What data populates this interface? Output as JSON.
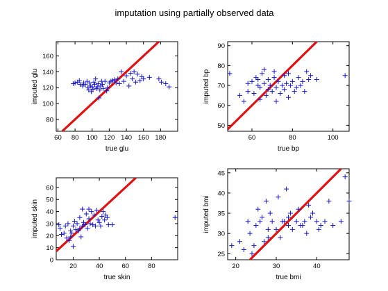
{
  "figure": {
    "title": "imputation using partially observed data"
  },
  "colors": {
    "points": "#1515cc",
    "line": "#e01010",
    "axes": "#000000",
    "background": "#ffffff"
  },
  "chart_data": [
    {
      "type": "scatter",
      "xlabel": "true glu",
      "ylabel": "imputed glu",
      "xlim": [
        58,
        200
      ],
      "ylim": [
        65,
        178
      ],
      "xticks": [
        60,
        80,
        100,
        120,
        140,
        160,
        180
      ],
      "yticks": [
        80,
        100,
        120,
        140,
        160
      ],
      "marker": "+",
      "reference_line": "y = x",
      "points": [
        [
          78,
          125
        ],
        [
          80,
          126
        ],
        [
          83,
          127
        ],
        [
          85,
          129
        ],
        [
          86,
          124
        ],
        [
          89,
          122
        ],
        [
          90,
          126
        ],
        [
          92,
          124
        ],
        [
          94,
          128
        ],
        [
          95,
          120
        ],
        [
          96,
          117
        ],
        [
          97,
          126
        ],
        [
          98,
          122
        ],
        [
          99,
          115
        ],
        [
          100,
          121
        ],
        [
          101,
          118
        ],
        [
          102,
          127
        ],
        [
          103,
          124
        ],
        [
          104,
          131
        ],
        [
          105,
          119
        ],
        [
          106,
          121
        ],
        [
          107,
          125
        ],
        [
          108,
          107
        ],
        [
          109,
          117
        ],
        [
          110,
          122
        ],
        [
          111,
          128
        ],
        [
          112,
          124
        ],
        [
          113,
          119
        ],
        [
          115,
          128
        ],
        [
          117,
          116
        ],
        [
          118,
          120
        ],
        [
          120,
          126
        ],
        [
          122,
          128
        ],
        [
          124,
          129
        ],
        [
          126,
          130
        ],
        [
          128,
          126
        ],
        [
          130,
          131
        ],
        [
          132,
          125
        ],
        [
          134,
          140
        ],
        [
          137,
          128
        ],
        [
          140,
          135
        ],
        [
          143,
          122
        ],
        [
          145,
          138
        ],
        [
          147,
          131
        ],
        [
          149,
          140
        ],
        [
          151,
          127
        ],
        [
          153,
          137
        ],
        [
          156,
          129
        ],
        [
          158,
          134
        ],
        [
          160,
          131
        ],
        [
          167,
          133
        ],
        [
          178,
          131
        ],
        [
          181,
          127
        ],
        [
          186,
          125
        ],
        [
          190,
          121
        ]
      ]
    },
    {
      "type": "scatter",
      "xlabel": "true bp",
      "ylabel": "imputed bp",
      "xlim": [
        48,
        108
      ],
      "ylim": [
        47,
        92
      ],
      "xticks": [
        60,
        80,
        100
      ],
      "yticks": [
        50,
        60,
        70,
        80,
        90
      ],
      "marker": "+",
      "reference_line": "y = x",
      "points": [
        [
          49,
          76
        ],
        [
          54,
          65
        ],
        [
          56,
          62
        ],
        [
          58,
          67
        ],
        [
          60,
          72
        ],
        [
          61,
          66
        ],
        [
          62,
          74
        ],
        [
          63,
          70
        ],
        [
          64,
          63
        ],
        [
          64,
          69
        ],
        [
          65,
          76
        ],
        [
          66,
          71
        ],
        [
          67,
          65
        ],
        [
          68,
          73
        ],
        [
          68,
          68
        ],
        [
          69,
          70
        ],
        [
          70,
          67
        ],
        [
          71,
          74
        ],
        [
          72,
          69
        ],
        [
          72,
          62
        ],
        [
          73,
          72
        ],
        [
          74,
          66
        ],
        [
          75,
          70
        ],
        [
          76,
          75
        ],
        [
          76,
          68
        ],
        [
          77,
          71
        ],
        [
          78,
          76
        ],
        [
          78,
          64
        ],
        [
          79,
          70
        ],
        [
          80,
          72
        ],
        [
          81,
          67
        ],
        [
          82,
          69
        ],
        [
          83,
          74
        ],
        [
          84,
          70
        ],
        [
          85,
          72
        ],
        [
          86,
          67
        ],
        [
          87,
          77
        ],
        [
          88,
          73
        ],
        [
          89,
          75
        ],
        [
          92,
          73
        ],
        [
          106,
          75
        ],
        [
          66,
          78
        ],
        [
          71,
          77
        ],
        [
          58,
          71
        ],
        [
          63,
          73
        ]
      ]
    },
    {
      "type": "scatter",
      "xlabel": "true skin",
      "ylabel": "imputed skin",
      "xlim": [
        7,
        100
      ],
      "ylim": [
        0,
        68
      ],
      "xticks": [
        20,
        40,
        60,
        80
      ],
      "yticks": [
        0,
        10,
        20,
        30,
        40,
        50,
        60
      ],
      "marker": "+",
      "reference_line": "y = x",
      "points": [
        [
          9,
          29
        ],
        [
          10,
          26
        ],
        [
          11,
          21
        ],
        [
          13,
          22
        ],
        [
          14,
          28
        ],
        [
          15,
          18
        ],
        [
          16,
          30
        ],
        [
          17,
          16
        ],
        [
          18,
          24
        ],
        [
          18,
          19
        ],
        [
          19,
          22
        ],
        [
          20,
          11
        ],
        [
          20,
          28
        ],
        [
          21,
          32
        ],
        [
          22,
          25
        ],
        [
          23,
          30
        ],
        [
          24,
          24
        ],
        [
          25,
          35
        ],
        [
          26,
          19
        ],
        [
          27,
          28
        ],
        [
          27,
          42
        ],
        [
          28,
          31
        ],
        [
          29,
          29
        ],
        [
          30,
          38
        ],
        [
          31,
          26
        ],
        [
          32,
          34
        ],
        [
          33,
          30
        ],
        [
          34,
          40
        ],
        [
          35,
          29
        ],
        [
          36,
          37
        ],
        [
          37,
          28
        ],
        [
          38,
          41
        ],
        [
          39,
          33
        ],
        [
          40,
          31
        ],
        [
          41,
          28
        ],
        [
          42,
          36
        ],
        [
          43,
          40
        ],
        [
          44,
          33
        ],
        [
          45,
          37
        ],
        [
          46,
          35
        ],
        [
          47,
          29
        ],
        [
          50,
          29
        ],
        [
          98,
          35
        ],
        [
          25,
          26
        ],
        [
          32,
          42
        ]
      ]
    },
    {
      "type": "scatter",
      "xlabel": "true bmi",
      "ylabel": "imputed bmi",
      "xlim": [
        18,
        48
      ],
      "ylim": [
        23.5,
        46
      ],
      "xticks": [
        20,
        30,
        40
      ],
      "yticks": [
        25,
        30,
        35,
        40,
        45
      ],
      "marker": "+",
      "reference_line": "y = x",
      "points": [
        [
          19,
          27
        ],
        [
          21,
          28
        ],
        [
          22,
          26
        ],
        [
          23,
          33
        ],
        [
          23.5,
          30
        ],
        [
          24,
          25
        ],
        [
          24.5,
          27
        ],
        [
          25,
          32
        ],
        [
          25.5,
          36
        ],
        [
          26,
          33
        ],
        [
          26.5,
          34
        ],
        [
          27,
          28
        ],
        [
          27.5,
          38
        ],
        [
          28,
          29
        ],
        [
          28.5,
          35
        ],
        [
          29,
          33
        ],
        [
          30,
          31
        ],
        [
          31,
          29
        ],
        [
          31.5,
          33
        ],
        [
          32,
          33
        ],
        [
          32.5,
          41
        ],
        [
          33,
          32
        ],
        [
          33.5,
          35
        ],
        [
          34,
          31
        ],
        [
          35,
          33
        ],
        [
          35.5,
          36
        ],
        [
          36,
          32
        ],
        [
          37,
          33
        ],
        [
          37.5,
          30
        ],
        [
          38,
          37
        ],
        [
          39,
          35
        ],
        [
          40,
          33
        ],
        [
          40.5,
          31
        ],
        [
          41,
          32
        ],
        [
          42,
          33
        ],
        [
          43,
          38
        ],
        [
          44,
          32
        ],
        [
          46,
          33
        ],
        [
          47,
          44
        ],
        [
          48,
          38
        ],
        [
          30.5,
          39
        ],
        [
          33,
          34
        ],
        [
          36.5,
          32
        ],
        [
          38.5,
          34
        ],
        [
          28,
          31
        ]
      ]
    }
  ]
}
